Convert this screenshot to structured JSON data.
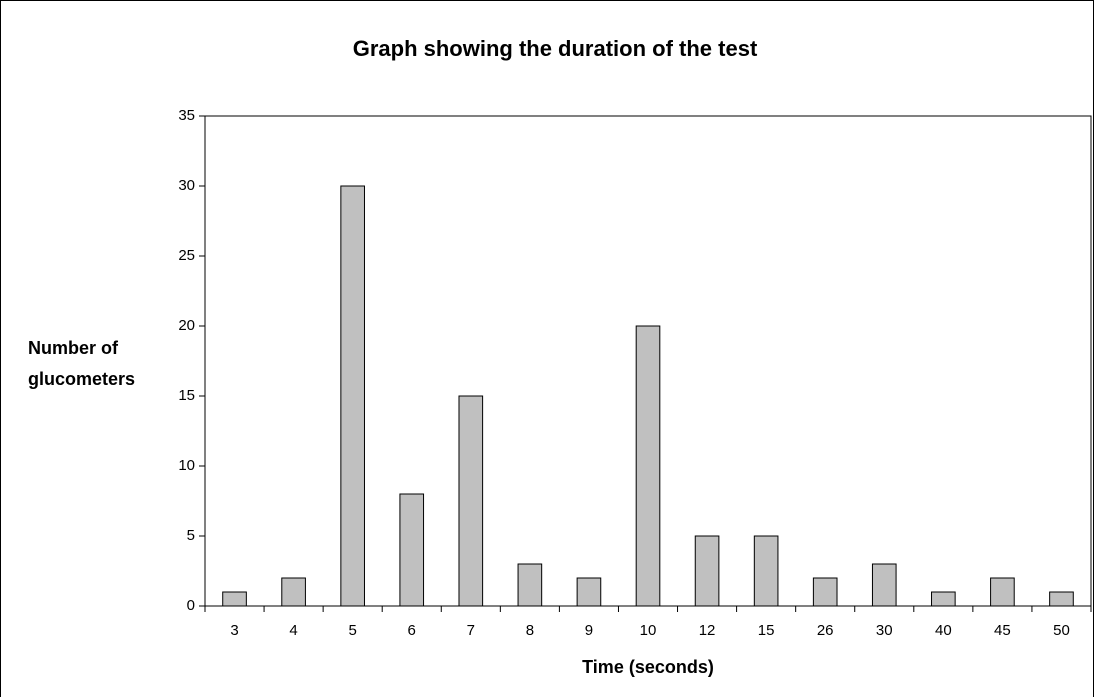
{
  "chart_data": {
    "type": "bar",
    "title": "Graph showing the duration of the test",
    "x_label": "Time (seconds)",
    "y_label": "Number of glucometers",
    "categories": [
      "3",
      "4",
      "5",
      "6",
      "7",
      "8",
      "9",
      "10",
      "12",
      "15",
      "26",
      "30",
      "40",
      "45",
      "50"
    ],
    "values": [
      1,
      2,
      30,
      8,
      15,
      3,
      2,
      20,
      5,
      5,
      2,
      3,
      1,
      2,
      1
    ],
    "color": "#c0c0c0",
    "ylim": [
      0,
      35
    ],
    "yticks": [
      0,
      5,
      10,
      15,
      20,
      25,
      30,
      35
    ],
    "grid": false
  }
}
